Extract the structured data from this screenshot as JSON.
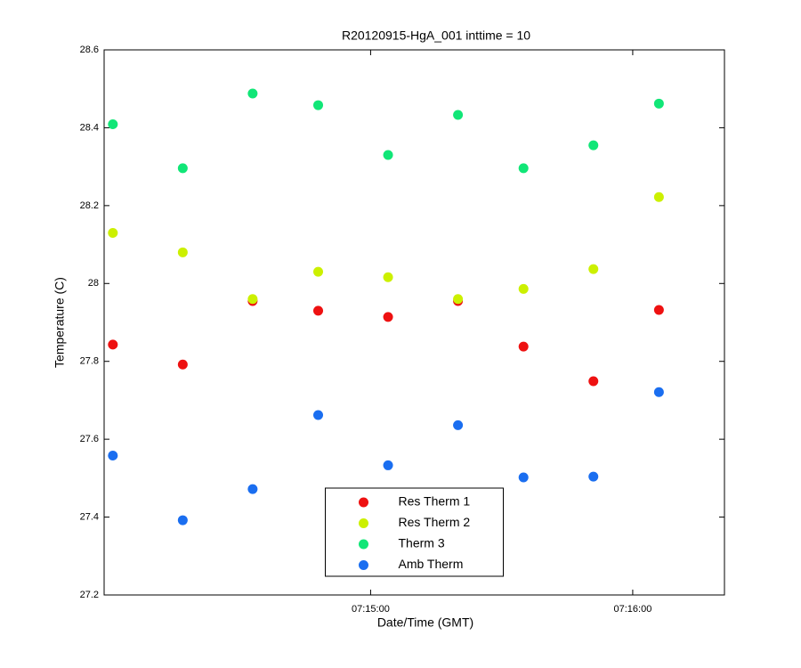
{
  "chart_data": {
    "type": "scatter",
    "title": "R20120915-HgA_001 inttime = 10",
    "xlabel": "Date/Time (GMT)",
    "ylabel": "Temperature (C)",
    "x": [
      "07:14:01",
      "07:14:17",
      "07:14:33",
      "07:14:48",
      "07:15:04",
      "07:15:20",
      "07:15:35",
      "07:15:51",
      "07:16:06"
    ],
    "xlim": [
      "07:13:59",
      "07:16:21"
    ],
    "xticks": [
      "07:15:00",
      "07:16:00"
    ],
    "ylim": [
      27.2,
      28.6
    ],
    "yticks": [
      27.2,
      27.4,
      27.6,
      27.8,
      28,
      28.2,
      28.4,
      28.6
    ],
    "grid": false,
    "legend": "lower center",
    "series": [
      {
        "name": "Res Therm 1",
        "color": "#ee1111",
        "values": [
          27.843,
          27.792,
          27.955,
          27.93,
          27.914,
          27.955,
          27.838,
          27.749,
          27.932
        ]
      },
      {
        "name": "Res Therm 2",
        "color": "#ccf000",
        "values": [
          28.13,
          28.08,
          27.96,
          28.03,
          28.016,
          27.96,
          27.986,
          28.037,
          28.222
        ]
      },
      {
        "name": "Therm 3",
        "color": "#11e677",
        "values": [
          28.409,
          28.296,
          28.488,
          28.458,
          28.33,
          28.433,
          28.296,
          28.355,
          28.462
        ]
      },
      {
        "name": "Amb Therm",
        "color": "#1a6ef0",
        "values": [
          27.558,
          27.392,
          27.472,
          27.662,
          27.533,
          27.636,
          27.502,
          27.504,
          27.721
        ]
      }
    ]
  }
}
